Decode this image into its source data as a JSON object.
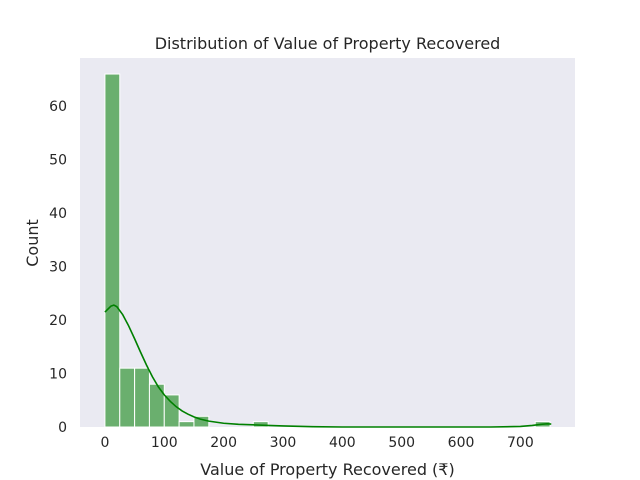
{
  "chart_data": {
    "type": "bar",
    "title": "Distribution of Value of Property Recovered",
    "xlabel": "Value of Property Recovered (₹)",
    "ylabel": "Count",
    "xlim": [
      -42,
      792
    ],
    "ylim": [
      0,
      69
    ],
    "x_ticks": [
      0,
      100,
      200,
      300,
      400,
      500,
      600,
      700
    ],
    "y_ticks": [
      0,
      10,
      20,
      30,
      40,
      50,
      60
    ],
    "grid": false,
    "bin_width": 25,
    "bins": [
      {
        "start": 0,
        "end": 25,
        "count": 66
      },
      {
        "start": 25,
        "end": 50,
        "count": 11
      },
      {
        "start": 50,
        "end": 75,
        "count": 11
      },
      {
        "start": 75,
        "end": 100,
        "count": 8
      },
      {
        "start": 100,
        "end": 125,
        "count": 6
      },
      {
        "start": 125,
        "end": 150,
        "count": 1
      },
      {
        "start": 150,
        "end": 175,
        "count": 2
      },
      {
        "start": 175,
        "end": 200,
        "count": 0
      },
      {
        "start": 200,
        "end": 225,
        "count": 0
      },
      {
        "start": 225,
        "end": 250,
        "count": 0
      },
      {
        "start": 250,
        "end": 275,
        "count": 1
      },
      {
        "start": 275,
        "end": 300,
        "count": 0
      },
      {
        "start": 725,
        "end": 750,
        "count": 1
      }
    ],
    "kde": {
      "x": [
        0,
        10,
        15,
        20,
        30,
        40,
        50,
        60,
        70,
        80,
        90,
        100,
        110,
        120,
        130,
        140,
        150,
        160,
        175,
        200,
        225,
        250,
        275,
        300,
        350,
        400,
        500,
        600,
        650,
        700,
        720,
        735,
        745,
        752
      ],
      "y": [
        21.5,
        22.6,
        22.8,
        22.5,
        21.0,
        18.9,
        16.5,
        14.0,
        11.6,
        9.4,
        7.5,
        6.0,
        4.8,
        3.8,
        3.0,
        2.4,
        1.9,
        1.5,
        1.1,
        0.7,
        0.5,
        0.4,
        0.3,
        0.2,
        0.05,
        0.0,
        0.0,
        0.0,
        0.0,
        0.1,
        0.3,
        0.5,
        0.6,
        0.55
      ]
    },
    "colors": {
      "bar_fill": "#6aaf6e",
      "bar_edge": "#ffffff",
      "kde_line": "#008000",
      "plot_bg": "#eaeaf2"
    }
  }
}
